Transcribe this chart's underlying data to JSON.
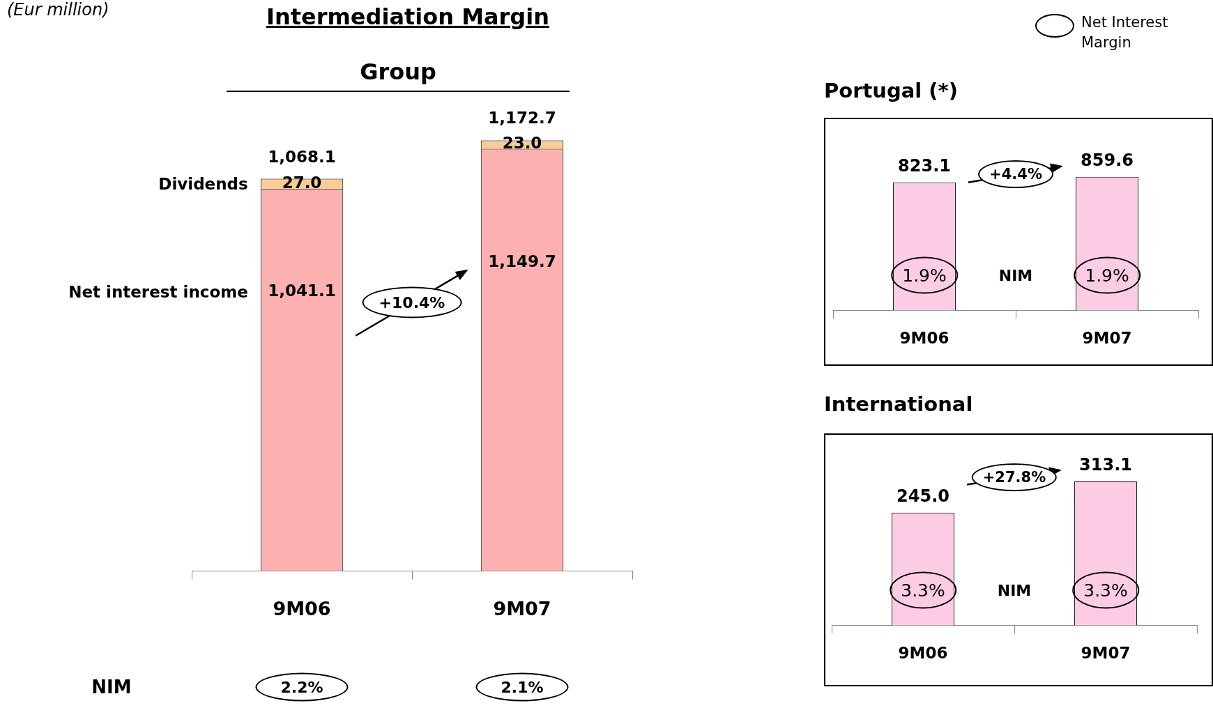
{
  "chart_data": [
    {
      "type": "bar",
      "title": "Intermediation Margin",
      "subtitle": "Group",
      "categories": [
        "9M06",
        "9M07"
      ],
      "stacked": true,
      "series": [
        {
          "name": "Net interest income",
          "color": "#fcb0b0",
          "values": [
            1041.1,
            1149.7
          ],
          "value_labels": [
            "1,041.1",
            "1,149.7"
          ]
        },
        {
          "name": "Dividends",
          "color": "#fdcc94",
          "values": [
            27.0,
            23.0
          ],
          "value_labels": [
            "27.0",
            "23.0"
          ]
        }
      ],
      "totals": [
        "1,068.1",
        "1,172.7"
      ],
      "annotations": [
        "(Eur million)",
        "+10.4%",
        "NIM",
        "2.2%",
        "2.1%",
        "Net Interest Margin"
      ],
      "grid": false,
      "legend": false
    },
    {
      "type": "bar",
      "title": "Portugal (*)",
      "categories": [
        "9M06",
        "9M07"
      ],
      "values": [
        823.1,
        859.6
      ],
      "color": "#fccce4",
      "value_labels": [
        "823.1",
        "859.6"
      ],
      "annotations": [
        "+4.4%",
        "1.9%",
        "NIM",
        "1.9%"
      ],
      "grid": false,
      "legend": false
    },
    {
      "type": "bar",
      "title": "International",
      "categories": [
        "9M06",
        "9M07"
      ],
      "values": [
        245.0,
        313.1
      ],
      "color": "#fccce4",
      "value_labels": [
        "245.0",
        "313.1"
      ],
      "annotations": [
        "+27.8%",
        "3.3%",
        "NIM",
        "3.3%"
      ],
      "grid": false,
      "legend": false
    }
  ]
}
